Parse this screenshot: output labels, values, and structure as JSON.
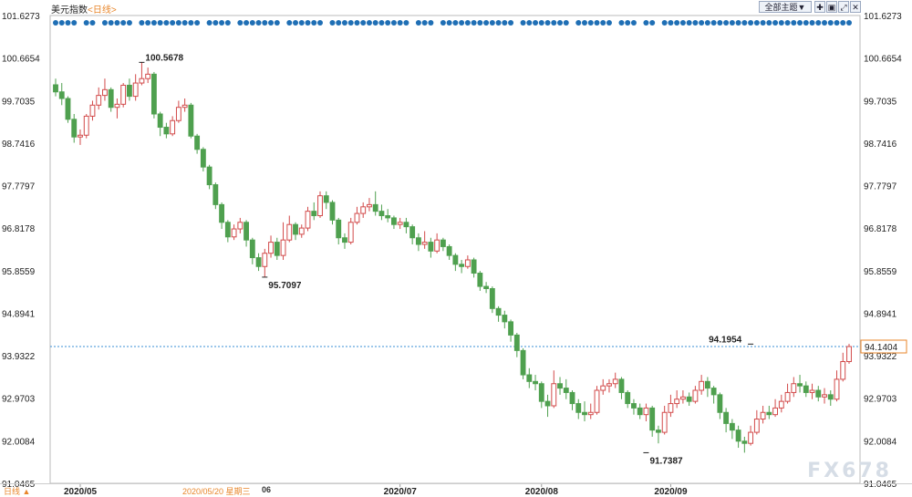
{
  "header": {
    "title": "美元指数",
    "period": "<日线>",
    "theme_button": "全部主题▼"
  },
  "chart_data": {
    "type": "candlestick",
    "title": "美元指数",
    "y_ticks": [
      "101.6273",
      "100.6654",
      "99.7035",
      "98.7416",
      "97.7797",
      "96.8178",
      "95.8559",
      "94.8941",
      "93.9322",
      "92.9703",
      "92.0084",
      "91.0465"
    ],
    "ylim": [
      91.0465,
      101.6273
    ],
    "x_labels": [
      {
        "label": "2020/05",
        "index": 4
      },
      {
        "label": "2020/07",
        "index": 56
      },
      {
        "label": "2020/08",
        "index": 79
      },
      {
        "label": "2020/09",
        "index": 100
      }
    ],
    "annotations": [
      {
        "label": "100.5678",
        "value": 100.5678,
        "index": 14,
        "kind": "high"
      },
      {
        "label": "95.7097",
        "value": 95.7097,
        "index": 34,
        "kind": "low"
      },
      {
        "label": "91.7387",
        "value": 91.7387,
        "index": 96,
        "kind": "low"
      },
      {
        "label": "94.1954",
        "value": 94.1954,
        "index": 113,
        "kind": "high"
      }
    ],
    "current_price": "94.1404",
    "current_value": 94.1404,
    "candles": [
      [
        100.06,
        99.9,
        100.2,
        99.8
      ],
      [
        99.9,
        99.75,
        100.1,
        99.6
      ],
      [
        99.75,
        99.28,
        99.8,
        99.2
      ],
      [
        99.28,
        98.88,
        99.4,
        98.75
      ],
      [
        98.88,
        98.92,
        99.05,
        98.7
      ],
      [
        98.92,
        99.35,
        99.4,
        98.85
      ],
      [
        99.35,
        99.6,
        99.7,
        99.25
      ],
      [
        99.6,
        99.82,
        100.0,
        99.5
      ],
      [
        99.82,
        99.95,
        100.2,
        99.7
      ],
      [
        99.95,
        99.55,
        100.0,
        99.45
      ],
      [
        99.55,
        99.62,
        99.75,
        99.3
      ],
      [
        99.62,
        100.05,
        100.1,
        99.55
      ],
      [
        100.05,
        99.8,
        100.2,
        99.7
      ],
      [
        99.8,
        100.1,
        100.3,
        99.7
      ],
      [
        100.1,
        100.2,
        100.57,
        100.05
      ],
      [
        100.2,
        100.3,
        100.45,
        100.1
      ],
      [
        100.3,
        99.4,
        100.35,
        99.3
      ],
      [
        99.4,
        99.1,
        99.45,
        98.9
      ],
      [
        99.1,
        98.95,
        99.2,
        98.85
      ],
      [
        98.95,
        99.25,
        99.35,
        98.9
      ],
      [
        99.25,
        99.55,
        99.7,
        99.2
      ],
      [
        99.55,
        99.6,
        99.75,
        99.45
      ],
      [
        99.6,
        98.9,
        99.65,
        98.85
      ],
      [
        98.9,
        98.6,
        98.95,
        98.5
      ],
      [
        98.6,
        98.2,
        98.65,
        98.1
      ],
      [
        98.2,
        97.8,
        98.25,
        97.7
      ],
      [
        97.8,
        97.35,
        97.85,
        97.25
      ],
      [
        97.35,
        96.95,
        97.4,
        96.8
      ],
      [
        96.95,
        96.62,
        97.0,
        96.5
      ],
      [
        96.62,
        96.8,
        96.9,
        96.55
      ],
      [
        96.8,
        96.95,
        97.05,
        96.7
      ],
      [
        96.95,
        96.55,
        97.0,
        96.4
      ],
      [
        96.55,
        96.15,
        96.6,
        96.0
      ],
      [
        96.15,
        95.95,
        96.25,
        95.85
      ],
      [
        95.95,
        96.25,
        96.35,
        95.71
      ],
      [
        96.25,
        96.5,
        96.65,
        96.15
      ],
      [
        96.5,
        96.2,
        96.6,
        96.1
      ],
      [
        96.2,
        96.55,
        96.95,
        96.1
      ],
      [
        96.55,
        96.9,
        97.1,
        96.5
      ],
      [
        96.9,
        96.68,
        96.95,
        96.55
      ],
      [
        96.68,
        96.82,
        96.9,
        96.6
      ],
      [
        96.82,
        97.2,
        97.3,
        96.75
      ],
      [
        97.2,
        97.1,
        97.4,
        97.0
      ],
      [
        97.1,
        97.55,
        97.65,
        97.05
      ],
      [
        97.55,
        97.4,
        97.65,
        97.25
      ],
      [
        97.4,
        97.0,
        97.45,
        96.9
      ],
      [
        97.0,
        96.6,
        97.05,
        96.45
      ],
      [
        96.6,
        96.5,
        96.7,
        96.35
      ],
      [
        96.5,
        96.95,
        97.05,
        96.45
      ],
      [
        96.95,
        97.15,
        97.3,
        96.9
      ],
      [
        97.15,
        97.3,
        97.4,
        97.05
      ],
      [
        97.3,
        97.35,
        97.5,
        97.2
      ],
      [
        97.35,
        97.2,
        97.65,
        97.1
      ],
      [
        97.2,
        97.1,
        97.35,
        97.0
      ],
      [
        97.1,
        97.05,
        97.25,
        96.95
      ],
      [
        97.05,
        96.9,
        97.1,
        96.8
      ],
      [
        96.9,
        96.95,
        97.05,
        96.8
      ],
      [
        96.95,
        96.85,
        97.05,
        96.7
      ],
      [
        96.85,
        96.6,
        96.9,
        96.45
      ],
      [
        96.6,
        96.45,
        96.7,
        96.3
      ],
      [
        96.45,
        96.5,
        96.75,
        96.35
      ],
      [
        96.5,
        96.3,
        96.6,
        96.15
      ],
      [
        96.3,
        96.55,
        96.7,
        96.25
      ],
      [
        96.55,
        96.4,
        96.6,
        96.3
      ],
      [
        96.4,
        96.2,
        96.45,
        96.1
      ],
      [
        96.2,
        96.0,
        96.25,
        95.85
      ],
      [
        96.0,
        95.95,
        96.1,
        95.8
      ],
      [
        95.95,
        96.1,
        96.2,
        95.9
      ],
      [
        96.1,
        95.8,
        96.15,
        95.7
      ],
      [
        95.8,
        95.5,
        95.85,
        95.4
      ],
      [
        95.5,
        95.45,
        95.6,
        95.35
      ],
      [
        95.45,
        95.0,
        95.5,
        94.9
      ],
      [
        95.0,
        94.85,
        95.05,
        94.7
      ],
      [
        94.85,
        94.7,
        94.95,
        94.55
      ],
      [
        94.7,
        94.4,
        94.75,
        94.25
      ],
      [
        94.4,
        94.05,
        94.45,
        93.9
      ],
      [
        94.05,
        93.5,
        94.1,
        93.4
      ],
      [
        93.5,
        93.35,
        93.65,
        93.2
      ],
      [
        93.35,
        93.3,
        93.5,
        93.15
      ],
      [
        93.3,
        92.9,
        93.35,
        92.75
      ],
      [
        92.9,
        92.8,
        93.05,
        92.55
      ],
      [
        92.8,
        93.3,
        93.6,
        92.75
      ],
      [
        93.3,
        93.2,
        93.45,
        93.05
      ],
      [
        93.2,
        93.1,
        93.4,
        92.95
      ],
      [
        93.1,
        92.85,
        93.15,
        92.7
      ],
      [
        92.85,
        92.65,
        92.95,
        92.5
      ],
      [
        92.65,
        92.6,
        92.9,
        92.45
      ],
      [
        92.6,
        92.65,
        92.85,
        92.5
      ],
      [
        92.65,
        93.15,
        93.25,
        92.6
      ],
      [
        93.15,
        93.25,
        93.4,
        93.05
      ],
      [
        93.25,
        93.3,
        93.4,
        93.1
      ],
      [
        93.3,
        93.4,
        93.55,
        93.2
      ],
      [
        93.4,
        93.1,
        93.45,
        92.95
      ],
      [
        93.1,
        92.85,
        93.15,
        92.75
      ],
      [
        92.85,
        92.75,
        92.95,
        92.6
      ],
      [
        92.75,
        92.6,
        92.85,
        92.5
      ],
      [
        92.6,
        92.75,
        92.85,
        92.45
      ],
      [
        92.75,
        92.25,
        92.8,
        92.1
      ],
      [
        92.25,
        92.2,
        92.35,
        91.95
      ],
      [
        92.2,
        92.65,
        92.8,
        92.15
      ],
      [
        92.65,
        92.85,
        93.05,
        92.55
      ],
      [
        92.85,
        92.95,
        93.15,
        92.75
      ],
      [
        92.95,
        93.0,
        93.15,
        92.85
      ],
      [
        93.0,
        92.9,
        93.1,
        92.8
      ],
      [
        92.9,
        93.15,
        93.25,
        92.85
      ],
      [
        93.15,
        93.35,
        93.5,
        93.05
      ],
      [
        93.35,
        93.2,
        93.45,
        93.0
      ],
      [
        93.2,
        93.05,
        93.25,
        92.85
      ],
      [
        93.05,
        92.65,
        93.1,
        92.5
      ],
      [
        92.65,
        92.4,
        92.75,
        92.2
      ],
      [
        92.4,
        92.25,
        92.5,
        92.05
      ],
      [
        92.25,
        92.0,
        92.35,
        91.85
      ],
      [
        92.0,
        91.95,
        92.1,
        91.74
      ],
      [
        91.95,
        92.2,
        92.35,
        91.9
      ],
      [
        92.2,
        92.5,
        92.7,
        92.15
      ],
      [
        92.5,
        92.65,
        92.8,
        92.4
      ],
      [
        92.65,
        92.6,
        92.8,
        92.5
      ],
      [
        92.6,
        92.75,
        92.95,
        92.55
      ],
      [
        92.75,
        92.9,
        93.05,
        92.65
      ],
      [
        92.9,
        93.1,
        93.3,
        92.85
      ],
      [
        93.1,
        93.3,
        93.45,
        93.0
      ],
      [
        93.3,
        93.25,
        93.5,
        93.1
      ],
      [
        93.25,
        93.1,
        93.35,
        93.0
      ],
      [
        93.1,
        93.15,
        93.3,
        92.95
      ],
      [
        93.15,
        93.0,
        93.25,
        92.9
      ],
      [
        93.0,
        93.05,
        93.2,
        92.85
      ],
      [
        93.05,
        92.95,
        93.15,
        92.8
      ],
      [
        92.95,
        93.4,
        93.6,
        92.9
      ],
      [
        93.4,
        93.8,
        94.0,
        93.35
      ],
      [
        93.8,
        94.14,
        94.2,
        93.75
      ]
    ],
    "dots_gaps": [
      4,
      7,
      13,
      24,
      29,
      37,
      44,
      58,
      62,
      75,
      84,
      91,
      95,
      98
    ]
  },
  "watermark": "FX678",
  "bottom": {
    "left_label": "日线 ▲",
    "cursor_date": "2020/05/20 星期三",
    "cursor_month": "06"
  }
}
